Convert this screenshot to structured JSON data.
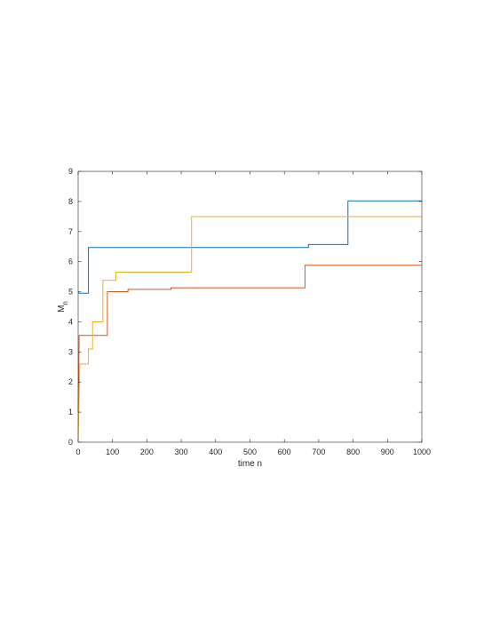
{
  "chart_data": {
    "type": "line",
    "step": true,
    "xlabel": "time n",
    "ylabel": "M",
    "ylabel_subscript": "n",
    "xlim": [
      0,
      1000
    ],
    "ylim": [
      0,
      9
    ],
    "xticks": [
      0,
      100,
      200,
      300,
      400,
      500,
      600,
      700,
      800,
      900,
      1000
    ],
    "yticks": [
      0,
      1,
      2,
      3,
      4,
      5,
      6,
      7,
      8,
      9
    ],
    "grid": false,
    "series": [
      {
        "color": "#0072BD",
        "points": [
          [
            0,
            5.0
          ],
          [
            3,
            4.95
          ],
          [
            30,
            4.95
          ],
          [
            30,
            6.47
          ],
          [
            670,
            6.47
          ],
          [
            670,
            6.57
          ],
          [
            785,
            6.57
          ],
          [
            785,
            8.02
          ],
          [
            1000,
            8.02
          ]
        ]
      },
      {
        "color": "#D95319",
        "points": [
          [
            0,
            1.0
          ],
          [
            3,
            3.55
          ],
          [
            85,
            3.55
          ],
          [
            85,
            5.0
          ],
          [
            145,
            5.0
          ],
          [
            145,
            5.08
          ],
          [
            270,
            5.08
          ],
          [
            270,
            5.13
          ],
          [
            660,
            5.13
          ],
          [
            660,
            5.88
          ],
          [
            1000,
            5.88
          ]
        ]
      },
      {
        "color": "#EDB120",
        "points": [
          [
            0,
            0.1
          ],
          [
            2,
            1.2
          ],
          [
            5,
            2.6
          ],
          [
            30,
            2.6
          ],
          [
            30,
            3.1
          ],
          [
            42,
            3.1
          ],
          [
            42,
            4.0
          ],
          [
            72,
            4.0
          ],
          [
            72,
            5.38
          ],
          [
            110,
            5.38
          ],
          [
            110,
            5.65
          ],
          [
            330,
            5.65
          ],
          [
            330,
            7.5
          ],
          [
            1000,
            7.5
          ]
        ]
      }
    ]
  }
}
